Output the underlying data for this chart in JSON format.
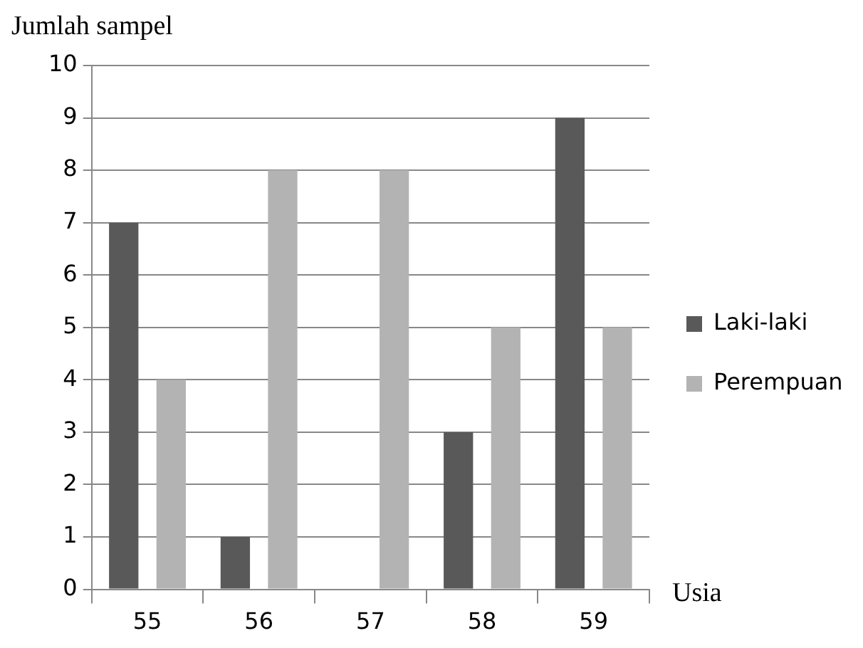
{
  "chart_data": {
    "type": "bar",
    "xlabel": "Usia",
    "ylabel": "Jumlah sampel",
    "categories": [
      "55",
      "56",
      "57",
      "58",
      "59"
    ],
    "series": [
      {
        "name": "Laki-laki",
        "color": "#595959",
        "values": [
          7,
          1,
          0,
          3,
          9
        ]
      },
      {
        "name": "Perempuan",
        "color": "#b3b3b3",
        "values": [
          4,
          8,
          8,
          5,
          5
        ]
      }
    ],
    "ylim": [
      0,
      10
    ],
    "yticks": [
      0,
      1,
      2,
      3,
      4,
      5,
      6,
      7,
      8,
      9,
      10
    ],
    "grid": "y",
    "legend": "right"
  }
}
